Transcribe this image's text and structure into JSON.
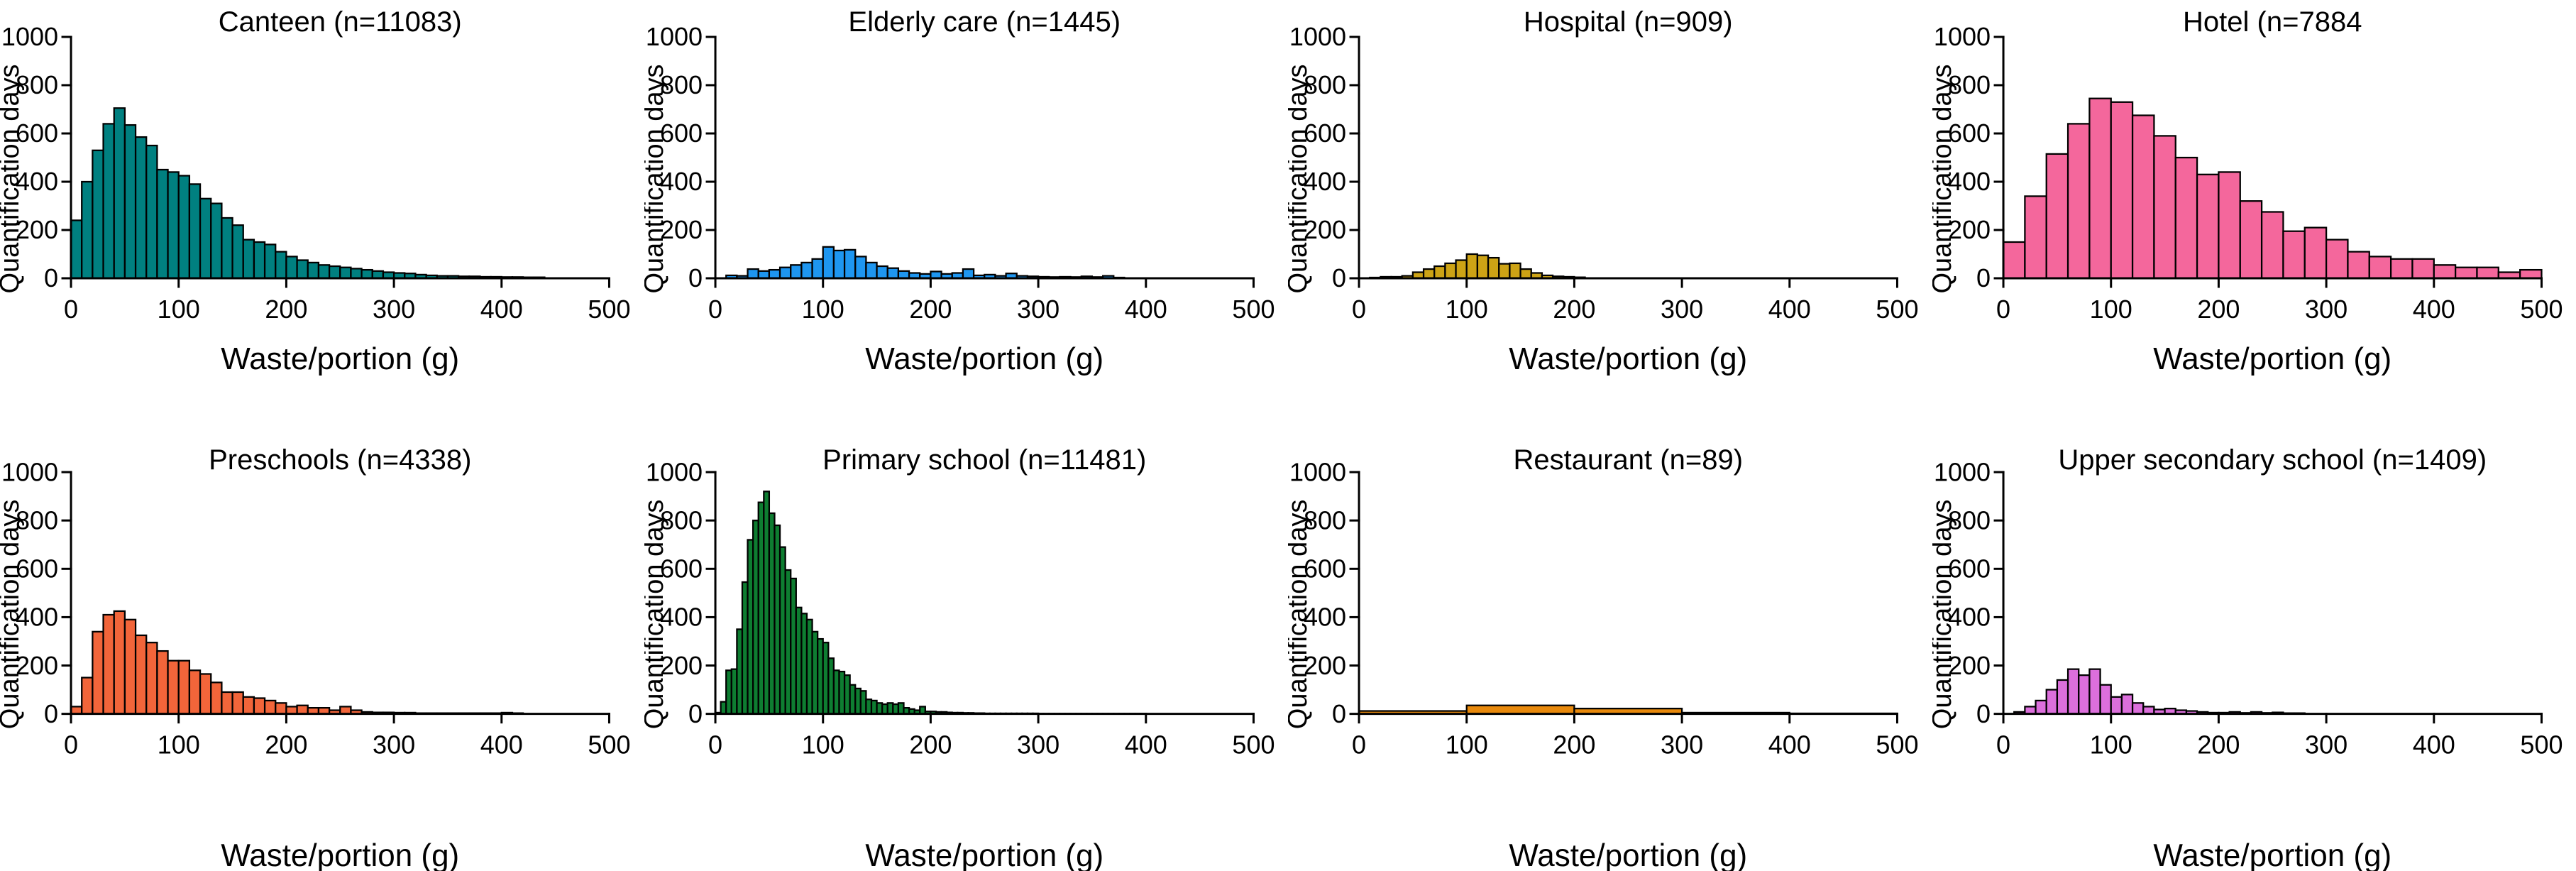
{
  "figure": {
    "background": "#ffffff",
    "axis_color": "#000000",
    "panels_per_row": 4,
    "xlabel": "Waste/portion (g)",
    "ylabel": "Quantification days",
    "x_ticks": [
      0,
      100,
      200,
      300,
      400,
      500
    ],
    "y_ticks": [
      0,
      200,
      400,
      600,
      800,
      1000
    ],
    "xlim": [
      0,
      500
    ],
    "ylim": [
      0,
      1000
    ]
  },
  "chart_data": [
    {
      "type": "bar",
      "id": "canteen",
      "title": "Canteen (n=11083)",
      "n": 11083,
      "color": "#008080",
      "xlabel": "Waste/portion (g)",
      "ylabel": "Quantification days",
      "xlim": [
        0,
        500
      ],
      "ylim": [
        0,
        1000
      ],
      "x_ticks": [
        0,
        100,
        200,
        300,
        400,
        500
      ],
      "y_ticks": [
        0,
        200,
        400,
        600,
        800,
        1000
      ],
      "bin_start": 0,
      "bin_width": 10,
      "values": [
        240,
        400,
        530,
        640,
        705,
        635,
        585,
        550,
        450,
        440,
        425,
        390,
        330,
        310,
        250,
        220,
        160,
        150,
        140,
        110,
        90,
        75,
        65,
        55,
        50,
        45,
        40,
        35,
        30,
        25,
        22,
        20,
        15,
        12,
        10,
        10,
        8,
        8,
        6,
        6,
        5,
        5,
        4,
        4
      ]
    },
    {
      "type": "bar",
      "id": "elderly-care",
      "title": "Elderly care (n=1445)",
      "n": 1445,
      "color": "#1E96F0",
      "xlabel": "Waste/portion (g)",
      "ylabel": "Quantification days",
      "xlim": [
        0,
        500
      ],
      "ylim": [
        0,
        1000
      ],
      "x_ticks": [
        0,
        100,
        200,
        300,
        400,
        500
      ],
      "y_ticks": [
        0,
        200,
        400,
        600,
        800,
        1000
      ],
      "bin_start": 10,
      "bin_width": 10,
      "values": [
        12,
        10,
        38,
        30,
        35,
        45,
        55,
        65,
        80,
        130,
        115,
        118,
        90,
        65,
        50,
        42,
        30,
        22,
        18,
        28,
        18,
        22,
        38,
        12,
        15,
        10,
        20,
        10,
        8,
        6,
        5,
        6,
        5,
        8,
        5,
        10,
        3
      ]
    },
    {
      "type": "bar",
      "id": "hospital",
      "title": "Hospital (n=909)",
      "n": 909,
      "color": "#CDA315",
      "xlabel": "Waste/portion (g)",
      "ylabel": "Quantification days",
      "xlim": [
        0,
        500
      ],
      "ylim": [
        0,
        1000
      ],
      "x_ticks": [
        0,
        100,
        200,
        300,
        400,
        500
      ],
      "y_ticks": [
        0,
        200,
        400,
        600,
        800,
        1000
      ],
      "bin_start": 10,
      "bin_width": 10,
      "values": [
        3,
        6,
        6,
        10,
        25,
        38,
        50,
        62,
        75,
        100,
        95,
        85,
        60,
        62,
        38,
        22,
        12,
        8,
        6,
        4
      ]
    },
    {
      "type": "bar",
      "id": "hotel",
      "title": "Hotel (n=7884",
      "n": 7884,
      "color": "#F4679C",
      "xlabel": "Waste/portion (g)",
      "ylabel": "Quantification days",
      "xlim": [
        0,
        500
      ],
      "ylim": [
        0,
        1000
      ],
      "x_ticks": [
        0,
        100,
        200,
        300,
        400,
        500
      ],
      "y_ticks": [
        0,
        200,
        400,
        600,
        800,
        1000
      ],
      "bin_start": 0,
      "bin_width": 20,
      "values": [
        150,
        340,
        515,
        640,
        745,
        730,
        675,
        590,
        500,
        430,
        440,
        320,
        275,
        195,
        210,
        160,
        110,
        90,
        80,
        80,
        55,
        45,
        45,
        25,
        35
      ]
    },
    {
      "type": "bar",
      "id": "preschools",
      "title": "Preschools (n=4338)",
      "n": 4338,
      "color": "#F2653A",
      "xlabel": "Waste/portion (g)",
      "ylabel": "Quantification days",
      "xlim": [
        0,
        500
      ],
      "ylim": [
        0,
        1000
      ],
      "x_ticks": [
        0,
        100,
        200,
        300,
        400,
        500
      ],
      "y_ticks": [
        0,
        200,
        400,
        600,
        800,
        1000
      ],
      "bin_start": 0,
      "bin_width": 10,
      "values": [
        30,
        150,
        340,
        410,
        425,
        390,
        325,
        295,
        260,
        220,
        220,
        180,
        165,
        130,
        90,
        90,
        70,
        65,
        55,
        45,
        30,
        35,
        25,
        25,
        15,
        30,
        15,
        8,
        6,
        6,
        5,
        5,
        3,
        3,
        3,
        3,
        3,
        3,
        3,
        3,
        5,
        3
      ]
    },
    {
      "type": "bar",
      "id": "primary-school",
      "title": "Primary school (n=11481)",
      "n": 11481,
      "color": "#0E7D31",
      "xlabel": "Waste/portion (g)",
      "ylabel": "Quantification days",
      "xlim": [
        0,
        500
      ],
      "ylim": [
        0,
        1000
      ],
      "x_ticks": [
        0,
        100,
        200,
        300,
        400,
        500
      ],
      "y_ticks": [
        0,
        200,
        400,
        600,
        800,
        1000
      ],
      "bin_start": 0,
      "bin_width": 5,
      "values": [
        5,
        50,
        180,
        185,
        350,
        545,
        720,
        800,
        875,
        920,
        830,
        780,
        690,
        595,
        560,
        440,
        415,
        390,
        340,
        310,
        295,
        230,
        180,
        175,
        160,
        120,
        105,
        95,
        60,
        55,
        45,
        40,
        45,
        40,
        45,
        25,
        20,
        15,
        30,
        10,
        10,
        8,
        8,
        6,
        5,
        5,
        4,
        4,
        3,
        3,
        2,
        2,
        2,
        2,
        2,
        2,
        2,
        2,
        2,
        2,
        1,
        1,
        1,
        1,
        1,
        1,
        1,
        1,
        1,
        1,
        1,
        1,
        1,
        1,
        1,
        1,
        1,
        1,
        1,
        1
      ]
    },
    {
      "type": "bar",
      "id": "restaurant",
      "title": "Restaurant (n=89)",
      "n": 89,
      "color": "#E8890C",
      "xlabel": "Waste/portion (g)",
      "ylabel": "Quantification days",
      "xlim": [
        0,
        500
      ],
      "ylim": [
        0,
        1000
      ],
      "x_ticks": [
        0,
        100,
        200,
        300,
        400,
        500
      ],
      "y_ticks": [
        0,
        200,
        400,
        600,
        800,
        1000
      ],
      "bin_start": 0,
      "bin_width": 100,
      "values": [
        12,
        35,
        22,
        5,
        2
      ]
    },
    {
      "type": "bar",
      "id": "upper-secondary-school",
      "title": "Upper secondary school (n=1409)",
      "n": 1409,
      "color": "#DC6FDC",
      "xlabel": "Waste/portion (g)",
      "ylabel": "Quantification days",
      "xlim": [
        0,
        500
      ],
      "ylim": [
        0,
        1000
      ],
      "x_ticks": [
        0,
        100,
        200,
        300,
        400,
        500
      ],
      "y_ticks": [
        0,
        200,
        400,
        600,
        800,
        1000
      ],
      "bin_start": 10,
      "bin_width": 10,
      "values": [
        8,
        30,
        55,
        100,
        140,
        185,
        160,
        185,
        120,
        70,
        80,
        45,
        30,
        18,
        22,
        15,
        12,
        8,
        5,
        5,
        8,
        4,
        8,
        4,
        6,
        3,
        3
      ]
    }
  ]
}
